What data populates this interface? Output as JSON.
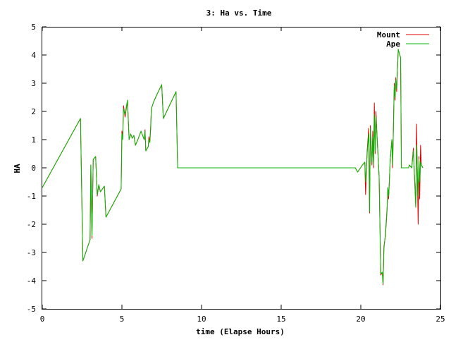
{
  "chart_data": {
    "type": "line",
    "title": "3: Ha vs. Time",
    "xlabel": "time (Elapse Hours)",
    "ylabel": "HA",
    "xlim": [
      0,
      25
    ],
    "ylim": [
      -5,
      5
    ],
    "xticks": [
      "0",
      "5",
      "10",
      "15",
      "20",
      "25"
    ],
    "yticks": [
      "-5",
      "-4",
      "-3",
      "-2",
      "-1",
      "0",
      "1",
      "2",
      "3",
      "4",
      "5"
    ],
    "grid": false,
    "legend_position": "top-right",
    "series": [
      {
        "name": "Mount",
        "color": "#dd0000",
        "points": [
          [
            0.0,
            -0.7
          ],
          [
            2.4,
            1.75
          ],
          [
            2.55,
            -3.3
          ],
          [
            3.0,
            -2.55
          ],
          [
            3.05,
            0.1
          ],
          [
            3.12,
            -2.5
          ],
          [
            3.2,
            0.3
          ],
          [
            3.35,
            0.4
          ],
          [
            3.45,
            -1.0
          ],
          [
            3.55,
            -0.6
          ],
          [
            3.65,
            -0.85
          ],
          [
            3.9,
            -0.65
          ],
          [
            4.0,
            -1.75
          ],
          [
            4.95,
            -0.75
          ],
          [
            5.0,
            1.3
          ],
          [
            5.05,
            1.1
          ],
          [
            5.1,
            2.2
          ],
          [
            5.2,
            1.8
          ],
          [
            5.35,
            2.4
          ],
          [
            5.45,
            1.0
          ],
          [
            5.55,
            1.2
          ],
          [
            5.65,
            1.05
          ],
          [
            5.75,
            1.15
          ],
          [
            5.85,
            0.8
          ],
          [
            6.0,
            1.0
          ],
          [
            6.2,
            1.3
          ],
          [
            6.4,
            1.0
          ],
          [
            6.45,
            1.35
          ],
          [
            6.5,
            0.6
          ],
          [
            6.65,
            0.75
          ],
          [
            6.7,
            1.1
          ],
          [
            6.75,
            0.9
          ],
          [
            6.8,
            1.4
          ],
          [
            6.85,
            2.1
          ],
          [
            7.0,
            2.35
          ],
          [
            7.2,
            2.6
          ],
          [
            7.5,
            2.95
          ],
          [
            7.6,
            1.75
          ],
          [
            8.4,
            2.7
          ],
          [
            8.5,
            0.0
          ],
          [
            19.65,
            0.0
          ],
          [
            19.8,
            -0.15
          ],
          [
            20.1,
            0.1
          ],
          [
            20.25,
            0.2
          ],
          [
            20.3,
            -0.95
          ],
          [
            20.4,
            0.6
          ],
          [
            20.5,
            1.4
          ],
          [
            20.55,
            -1.6
          ],
          [
            20.6,
            1.5
          ],
          [
            20.7,
            0.1
          ],
          [
            20.75,
            1.3
          ],
          [
            20.8,
            0.0
          ],
          [
            20.85,
            2.3
          ],
          [
            20.9,
            0.5
          ],
          [
            20.95,
            2.0
          ],
          [
            21.05,
            0.8
          ],
          [
            21.15,
            -0.3
          ],
          [
            21.25,
            -3.8
          ],
          [
            21.35,
            -3.7
          ],
          [
            21.4,
            -4.15
          ],
          [
            21.45,
            -2.8
          ],
          [
            21.55,
            -2.4
          ],
          [
            21.65,
            -1.5
          ],
          [
            21.7,
            -0.7
          ],
          [
            21.75,
            -1.1
          ],
          [
            21.85,
            0.3
          ],
          [
            21.95,
            1.0
          ],
          [
            22.0,
            0.0
          ],
          [
            22.05,
            1.5
          ],
          [
            22.1,
            3.0
          ],
          [
            22.15,
            2.4
          ],
          [
            22.2,
            3.2
          ],
          [
            22.25,
            2.7
          ],
          [
            22.35,
            4.2
          ],
          [
            22.5,
            3.9
          ],
          [
            22.55,
            0.0
          ],
          [
            23.0,
            0.0
          ],
          [
            23.05,
            0.1
          ],
          [
            23.2,
            0.0
          ],
          [
            23.3,
            0.7
          ],
          [
            23.35,
            0.0
          ],
          [
            23.45,
            -1.4
          ],
          [
            23.5,
            1.55
          ],
          [
            23.55,
            -0.2
          ],
          [
            23.6,
            -2.0
          ],
          [
            23.65,
            0.4
          ],
          [
            23.7,
            -1.1
          ],
          [
            23.75,
            0.8
          ],
          [
            23.8,
            0.1
          ],
          [
            23.9,
            0.0
          ]
        ]
      },
      {
        "name": "Ape",
        "color": "#00bb00",
        "points": [
          [
            0.0,
            -0.7
          ],
          [
            2.4,
            1.75
          ],
          [
            2.55,
            -3.3
          ],
          [
            3.0,
            -2.55
          ],
          [
            3.05,
            0.1
          ],
          [
            3.12,
            -2.4
          ],
          [
            3.2,
            0.3
          ],
          [
            3.35,
            0.4
          ],
          [
            3.45,
            -0.95
          ],
          [
            3.55,
            -0.6
          ],
          [
            3.65,
            -0.85
          ],
          [
            3.9,
            -0.65
          ],
          [
            4.0,
            -1.75
          ],
          [
            4.95,
            -0.75
          ],
          [
            5.0,
            1.2
          ],
          [
            5.05,
            1.0
          ],
          [
            5.1,
            2.1
          ],
          [
            5.2,
            1.9
          ],
          [
            5.35,
            2.4
          ],
          [
            5.45,
            1.0
          ],
          [
            5.55,
            1.2
          ],
          [
            5.65,
            1.05
          ],
          [
            5.75,
            1.15
          ],
          [
            5.85,
            0.8
          ],
          [
            6.0,
            1.0
          ],
          [
            6.2,
            1.3
          ],
          [
            6.4,
            1.0
          ],
          [
            6.45,
            1.3
          ],
          [
            6.5,
            0.6
          ],
          [
            6.65,
            0.75
          ],
          [
            6.7,
            1.0
          ],
          [
            6.75,
            0.9
          ],
          [
            6.8,
            1.3
          ],
          [
            6.85,
            2.1
          ],
          [
            7.0,
            2.35
          ],
          [
            7.2,
            2.6
          ],
          [
            7.5,
            2.95
          ],
          [
            7.6,
            1.75
          ],
          [
            8.4,
            2.7
          ],
          [
            8.5,
            0.0
          ],
          [
            19.65,
            0.0
          ],
          [
            19.8,
            -0.15
          ],
          [
            20.1,
            0.1
          ],
          [
            20.25,
            0.2
          ],
          [
            20.3,
            -0.5
          ],
          [
            20.4,
            0.5
          ],
          [
            20.5,
            1.2
          ],
          [
            20.55,
            -1.55
          ],
          [
            20.6,
            1.4
          ],
          [
            20.7,
            0.2
          ],
          [
            20.75,
            1.1
          ],
          [
            20.8,
            0.1
          ],
          [
            20.85,
            1.9
          ],
          [
            20.9,
            0.6
          ],
          [
            20.95,
            1.8
          ],
          [
            21.05,
            0.8
          ],
          [
            21.15,
            -0.3
          ],
          [
            21.25,
            -3.75
          ],
          [
            21.35,
            -3.7
          ],
          [
            21.4,
            -4.1
          ],
          [
            21.45,
            -2.9
          ],
          [
            21.55,
            -2.3
          ],
          [
            21.65,
            -1.4
          ],
          [
            21.7,
            -0.7
          ],
          [
            21.75,
            -1.0
          ],
          [
            21.85,
            0.3
          ],
          [
            21.95,
            1.0
          ],
          [
            22.0,
            0.1
          ],
          [
            22.05,
            1.4
          ],
          [
            22.1,
            2.9
          ],
          [
            22.15,
            2.5
          ],
          [
            22.2,
            3.1
          ],
          [
            22.25,
            2.8
          ],
          [
            22.35,
            4.2
          ],
          [
            22.5,
            3.9
          ],
          [
            22.55,
            0.0
          ],
          [
            23.0,
            0.0
          ],
          [
            23.05,
            0.1
          ],
          [
            23.2,
            0.0
          ],
          [
            23.3,
            0.6
          ],
          [
            23.35,
            0.0
          ],
          [
            23.45,
            -1.4
          ],
          [
            23.5,
            0.8
          ],
          [
            23.55,
            -0.1
          ],
          [
            23.6,
            -1.0
          ],
          [
            23.65,
            0.3
          ],
          [
            23.7,
            -0.5
          ],
          [
            23.75,
            0.2
          ],
          [
            23.8,
            0.1
          ],
          [
            23.9,
            0.0
          ]
        ]
      }
    ]
  }
}
